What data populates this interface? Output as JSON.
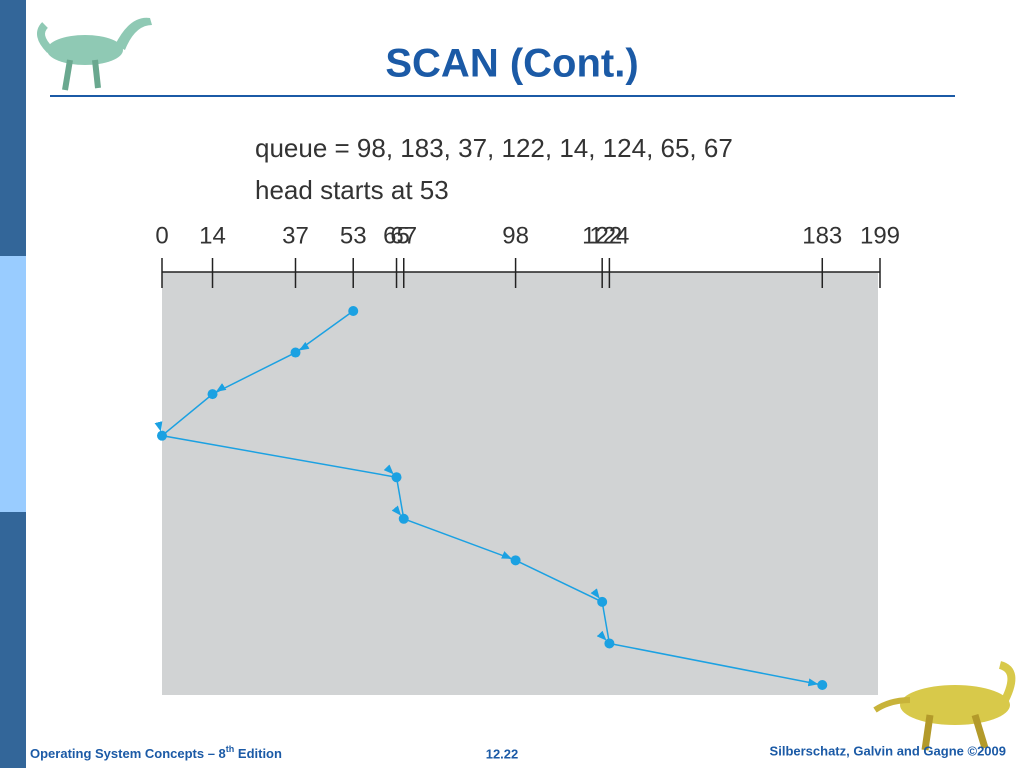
{
  "title": "SCAN (Cont.)",
  "footer": {
    "left": "Operating System Concepts – 8",
    "left_sup": "th",
    "left_end": " Edition",
    "center": "12.22",
    "right": "Silberschatz, Galvin and Gagne ©2009"
  },
  "chart_data": {
    "type": "line",
    "lines": [
      "queue = 98, 183, 37, 122, 14, 124, 65, 67",
      "head starts at 53"
    ],
    "xlim": [
      0,
      199
    ],
    "xticks": [
      0,
      14,
      37,
      53,
      65,
      67,
      98,
      122,
      124,
      183,
      199
    ],
    "series": [
      {
        "color": "#1ba1e2",
        "values": [
          53,
          37,
          14,
          0,
          65,
          67,
          98,
          122,
          124,
          183
        ]
      }
    ]
  }
}
